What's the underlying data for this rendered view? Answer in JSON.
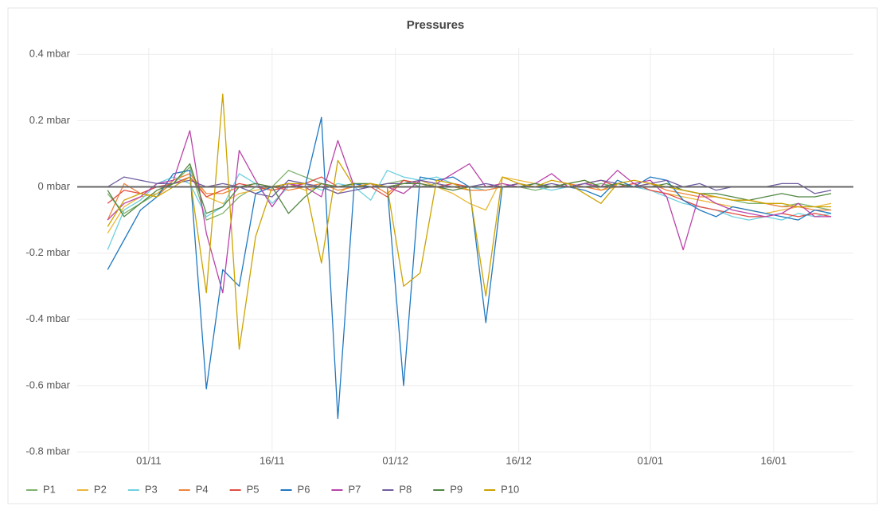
{
  "chart_data": {
    "type": "line",
    "title": "Pressures",
    "x": [
      -5,
      -3,
      -1,
      1,
      3,
      5,
      7,
      9,
      11,
      13,
      15,
      17,
      19,
      21,
      23,
      25,
      27,
      29,
      31,
      33,
      35,
      37,
      39,
      41,
      43,
      45,
      47,
      49,
      51,
      53,
      55,
      57,
      59,
      61,
      63,
      65,
      67,
      69,
      71,
      73,
      75,
      77,
      79,
      81,
      83
    ],
    "xlim": [
      -8.7,
      85.7
    ],
    "xticks": [
      {
        "value": 0,
        "label": "01/11"
      },
      {
        "value": 15,
        "label": "16/11"
      },
      {
        "value": 30,
        "label": "01/12"
      },
      {
        "value": 45,
        "label": "16/12"
      },
      {
        "value": 61,
        "label": "01/01"
      },
      {
        "value": 76,
        "label": "16/01"
      }
    ],
    "ylim": [
      -0.8,
      0.42
    ],
    "yticks": [
      {
        "value": -0.8,
        "label": "-0.8 mbar"
      },
      {
        "value": -0.6,
        "label": "-0.6 mbar"
      },
      {
        "value": -0.4,
        "label": "-0.4 mbar"
      },
      {
        "value": -0.2,
        "label": "-0.2 mbar"
      },
      {
        "value": 0,
        "label": "0 mbar"
      },
      {
        "value": 0.2,
        "label": "0.2 mbar"
      },
      {
        "value": 0.4,
        "label": "0.4 mbar"
      }
    ],
    "grid": true,
    "legend": "bottom-left",
    "series": [
      {
        "name": "P1",
        "color": "#7eb26d",
        "values": [
          -0.02,
          -0.08,
          -0.05,
          -0.02,
          0.01,
          0.06,
          -0.1,
          -0.08,
          -0.03,
          0,
          0,
          0.05,
          0.03,
          0.01,
          0,
          0.01,
          0,
          0.01,
          0.02,
          0,
          0.01,
          0,
          0,
          0,
          0,
          0,
          -0.01,
          0,
          0.01,
          0,
          0.01,
          0,
          0,
          0.01,
          0,
          -0.01,
          -0.02,
          -0.03,
          -0.04,
          -0.05,
          -0.05,
          -0.06,
          -0.05,
          -0.06,
          -0.07
        ]
      },
      {
        "name": "P2",
        "color": "#eab839",
        "values": [
          -0.14,
          -0.06,
          -0.03,
          -0.02,
          0.02,
          0.04,
          -0.03,
          -0.05,
          -0.02,
          -0.01,
          0,
          0.01,
          -0.01,
          0,
          -0.02,
          0.01,
          0,
          0,
          0.01,
          0.02,
          0,
          -0.02,
          -0.05,
          -0.07,
          0.03,
          0.02,
          0.01,
          0,
          0.01,
          0.02,
          -0.01,
          0,
          0.01,
          -0.01,
          -0.02,
          -0.03,
          -0.04,
          -0.05,
          -0.06,
          -0.07,
          -0.08,
          -0.07,
          -0.06,
          -0.06,
          -0.05
        ]
      },
      {
        "name": "P3",
        "color": "#6ed0e0",
        "values": [
          -0.19,
          -0.07,
          -0.04,
          0.01,
          0.03,
          0.01,
          -0.09,
          -0.06,
          0.04,
          0.01,
          -0.05,
          0,
          0.01,
          -0.01,
          0.01,
          0,
          -0.04,
          0.05,
          0.03,
          0.02,
          0.03,
          0.01,
          0,
          -0.01,
          0,
          0.01,
          0,
          -0.01,
          0,
          0.01,
          0,
          0.01,
          0,
          -0.01,
          -0.03,
          -0.05,
          -0.06,
          -0.07,
          -0.09,
          -0.1,
          -0.09,
          -0.1,
          -0.08,
          -0.09,
          -0.08
        ]
      },
      {
        "name": "P4",
        "color": "#ef843c",
        "values": [
          -0.1,
          0.01,
          -0.02,
          -0.03,
          0.02,
          0.04,
          -0.02,
          -0.02,
          0,
          0.01,
          0,
          -0.01,
          0,
          0.01,
          -0.01,
          0,
          0.01,
          -0.02,
          0.02,
          0.01,
          0,
          0,
          -0.01,
          -0.01,
          0,
          0.01,
          0,
          0,
          0.01,
          0,
          -0.01,
          0.01,
          0,
          0.01,
          -0.01,
          -0.02,
          -0.03,
          -0.03,
          -0.04,
          -0.04,
          -0.05,
          -0.06,
          -0.06,
          -0.07,
          -0.07
        ]
      },
      {
        "name": "P5",
        "color": "#e24d42",
        "values": [
          -0.05,
          -0.01,
          -0.02,
          0,
          0.01,
          0.03,
          -0.03,
          -0.01,
          0.01,
          0,
          -0.01,
          0,
          0.01,
          0.03,
          0,
          0.01,
          0,
          -0.03,
          0.02,
          0.01,
          0,
          0.01,
          0,
          0,
          0,
          0.01,
          0,
          0,
          0,
          0.01,
          0.02,
          0,
          0.01,
          -0.01,
          -0.02,
          -0.04,
          -0.06,
          -0.07,
          -0.08,
          -0.09,
          -0.09,
          -0.08,
          -0.09,
          -0.08,
          -0.09
        ]
      },
      {
        "name": "P6",
        "color": "#1f78c1",
        "values": [
          -0.25,
          -0.16,
          -0.07,
          -0.03,
          0.04,
          0.05,
          -0.61,
          -0.25,
          -0.3,
          -0.02,
          0,
          0.01,
          0,
          0.21,
          -0.7,
          0.01,
          0,
          0,
          -0.6,
          0.03,
          0.02,
          0.03,
          0,
          -0.41,
          0,
          0,
          0.01,
          0,
          0,
          -0.01,
          -0.03,
          0.02,
          0,
          0.03,
          0.02,
          -0.04,
          -0.07,
          -0.09,
          -0.06,
          -0.07,
          -0.08,
          -0.09,
          -0.1,
          -0.07,
          -0.08
        ]
      },
      {
        "name": "P7",
        "color": "#ba43a9",
        "values": [
          -0.1,
          -0.05,
          -0.03,
          0.01,
          0.02,
          0.17,
          -0.14,
          -0.32,
          0.11,
          0.02,
          -0.06,
          0.01,
          0,
          -0.03,
          0.14,
          0,
          0.01,
          0,
          -0.02,
          0.02,
          0.01,
          0.04,
          0.07,
          0,
          0.01,
          0,
          0.01,
          0.04,
          0,
          0.01,
          0,
          0.05,
          0.01,
          0.02,
          -0.03,
          -0.19,
          -0.02,
          -0.05,
          -0.07,
          -0.08,
          -0.09,
          -0.08,
          -0.05,
          -0.09,
          -0.09
        ]
      },
      {
        "name": "P8",
        "color": "#705da0",
        "values": [
          0,
          0.03,
          0.02,
          0.01,
          0.01,
          0.02,
          0,
          0.01,
          0,
          -0.02,
          -0.03,
          0.02,
          0.01,
          0,
          -0.02,
          -0.01,
          0,
          0.01,
          0.01,
          0.02,
          0.01,
          0,
          0,
          0.01,
          0,
          0.01,
          0,
          0.01,
          0,
          0.01,
          0.02,
          0.01,
          0,
          0.01,
          0.02,
          0,
          0.01,
          -0.01,
          0,
          0,
          0,
          0.01,
          0.01,
          -0.02,
          -0.01
        ]
      },
      {
        "name": "P9",
        "color": "#508642",
        "values": [
          -0.01,
          -0.09,
          -0.05,
          -0.01,
          0.01,
          0.07,
          -0.08,
          -0.06,
          0,
          0.01,
          0,
          -0.08,
          -0.03,
          0.01,
          0,
          0.01,
          0.01,
          0,
          0.01,
          0.01,
          0,
          -0.01,
          0,
          0,
          0,
          0,
          0.01,
          0,
          0.01,
          0.02,
          0,
          0.01,
          0,
          0,
          0.01,
          -0.01,
          -0.02,
          -0.02,
          -0.03,
          -0.04,
          -0.03,
          -0.02,
          -0.03,
          -0.03,
          -0.02
        ]
      },
      {
        "name": "P10",
        "color": "#cca300",
        "values": [
          -0.12,
          -0.04,
          -0.02,
          -0.03,
          0,
          0.03,
          -0.32,
          0.28,
          -0.49,
          -0.15,
          0,
          0.01,
          0.01,
          -0.23,
          0.08,
          0,
          0.01,
          0,
          -0.3,
          -0.26,
          0.02,
          0.01,
          -0.01,
          -0.33,
          0.03,
          0.01,
          0,
          0.02,
          0.01,
          -0.02,
          -0.05,
          0.01,
          0.02,
          0.01,
          0,
          -0.01,
          -0.02,
          -0.03,
          -0.04,
          -0.04,
          -0.05,
          -0.05,
          -0.06,
          -0.06,
          -0.06
        ]
      }
    ]
  }
}
